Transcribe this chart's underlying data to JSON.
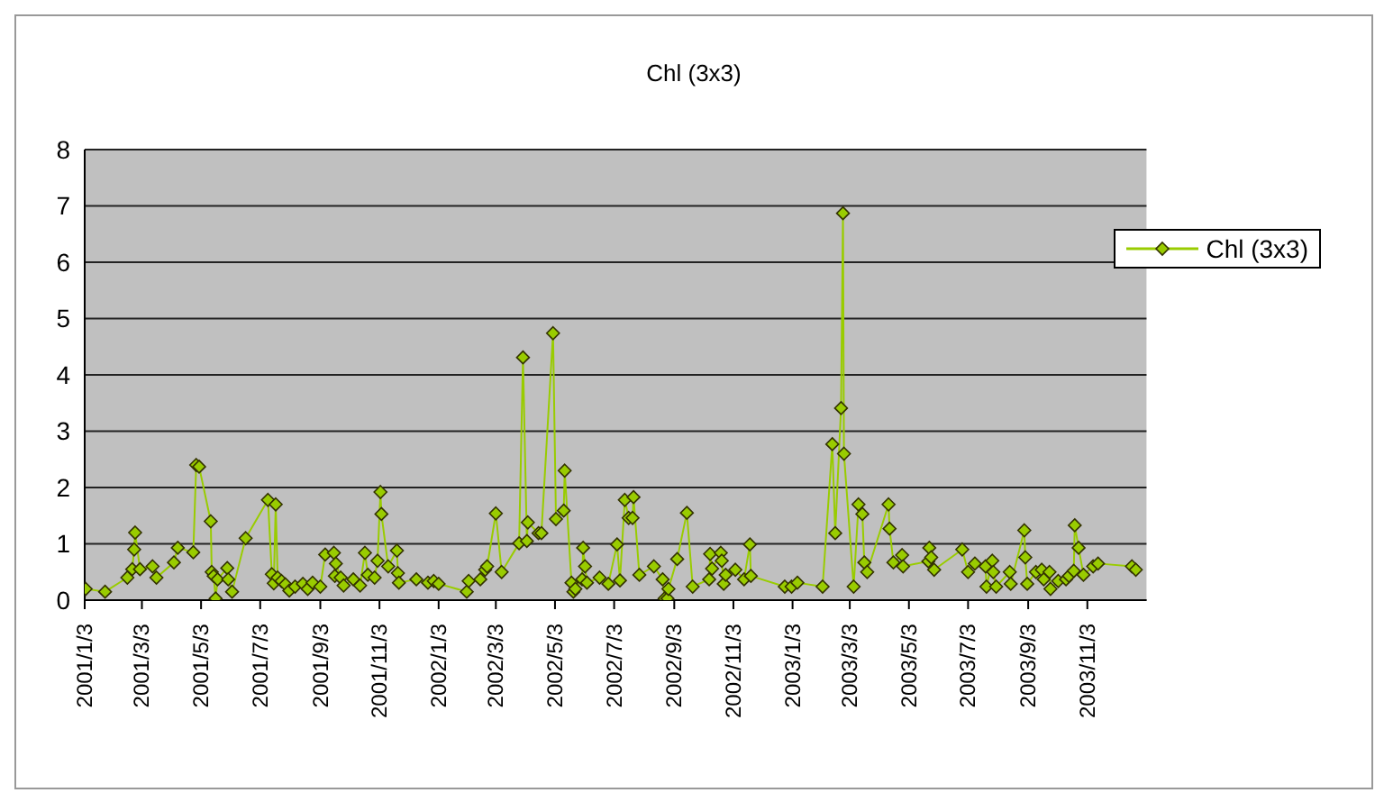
{
  "chart_data": {
    "type": "line",
    "title": "Chl (3x3)",
    "x": [
      "2001-01-04",
      "2001-01-24",
      "2001-02-16",
      "2001-02-21",
      "2001-02-23",
      "2001-02-24",
      "2001-03-01",
      "2001-03-14",
      "2001-03-18",
      "2001-04-05",
      "2001-04-09",
      "2001-04-25",
      "2001-04-28",
      "2001-05-01",
      "2001-05-13",
      "2001-05-14",
      "2001-05-16",
      "2001-05-18",
      "2001-05-20",
      "2001-05-30",
      "2001-05-31",
      "2001-06-04",
      "2001-06-18",
      "2001-07-11",
      "2001-07-15",
      "2001-07-17",
      "2001-07-19",
      "2001-07-21",
      "2001-07-25",
      "2001-07-29",
      "2001-08-02",
      "2001-08-08",
      "2001-08-16",
      "2001-08-21",
      "2001-08-26",
      "2001-09-03",
      "2001-09-08",
      "2001-09-17",
      "2001-09-18",
      "2001-09-19",
      "2001-09-24",
      "2001-09-27",
      "2001-10-07",
      "2001-10-14",
      "2001-10-19",
      "2001-10-22",
      "2001-10-29",
      "2001-11-01",
      "2001-11-04",
      "2001-11-05",
      "2001-11-12",
      "2001-11-21",
      "2001-11-22",
      "2001-11-23",
      "2001-12-11",
      "2001-12-23",
      "2001-12-29",
      "2002-01-03",
      "2002-02-01",
      "2002-02-03",
      "2002-02-15",
      "2002-02-20",
      "2002-02-22",
      "2002-03-03",
      "2002-03-09",
      "2002-03-27",
      "2002-03-31",
      "2002-04-04",
      "2002-04-05",
      "2002-04-16",
      "2002-04-19",
      "2002-05-01",
      "2002-05-04",
      "2002-05-12",
      "2002-05-13",
      "2002-05-20",
      "2002-05-22",
      "2002-05-24",
      "2002-05-31",
      "2002-06-01",
      "2002-06-03",
      "2002-06-05",
      "2002-06-18",
      "2002-06-27",
      "2002-07-06",
      "2002-07-09",
      "2002-07-14",
      "2002-07-18",
      "2002-07-22",
      "2002-07-23",
      "2002-07-29",
      "2002-08-13",
      "2002-08-22",
      "2002-08-24",
      "2002-08-27",
      "2002-08-28",
      "2002-09-06",
      "2002-09-16",
      "2002-09-22",
      "2002-10-09",
      "2002-10-10",
      "2002-10-12",
      "2002-10-21",
      "2002-10-22",
      "2002-10-24",
      "2002-10-26",
      "2002-11-05",
      "2002-11-14",
      "2002-11-20",
      "2002-11-21",
      "2002-12-26",
      "2003-01-02",
      "2003-01-08",
      "2003-02-03",
      "2003-02-13",
      "2003-02-16",
      "2003-02-22",
      "2003-02-24",
      "2003-02-25",
      "2003-03-07",
      "2003-03-12",
      "2003-03-16",
      "2003-03-18",
      "2003-03-21",
      "2003-04-12",
      "2003-04-13",
      "2003-04-17",
      "2003-04-26",
      "2003-04-27",
      "2003-05-23",
      "2003-05-24",
      "2003-05-26",
      "2003-05-29",
      "2003-06-27",
      "2003-07-03",
      "2003-07-10",
      "2003-07-21",
      "2003-07-22",
      "2003-07-28",
      "2003-07-29",
      "2003-08-01",
      "2003-08-15",
      "2003-08-16",
      "2003-08-30",
      "2003-08-31",
      "2003-09-02",
      "2003-09-11",
      "2003-09-17",
      "2003-09-19",
      "2003-09-25",
      "2003-09-26",
      "2003-10-04",
      "2003-10-12",
      "2003-10-15",
      "2003-10-20",
      "2003-10-21",
      "2003-10-25",
      "2003-10-30",
      "2003-11-09",
      "2003-11-14",
      "2003-12-19",
      "2003-12-23"
    ],
    "series": [
      {
        "name": "Chl (3x3)",
        "color": "#99cc00",
        "values": [
          0.2,
          0.15,
          0.4,
          0.55,
          0.9,
          1.2,
          0.55,
          0.6,
          0.4,
          0.67,
          0.93,
          0.85,
          2.4,
          2.37,
          1.4,
          0.5,
          0.43,
          0.03,
          0.37,
          0.57,
          0.37,
          0.15,
          1.1,
          1.78,
          0.46,
          0.3,
          1.7,
          0.4,
          0.34,
          0.28,
          0.17,
          0.24,
          0.29,
          0.2,
          0.31,
          0.24,
          0.81,
          0.84,
          0.43,
          0.65,
          0.4,
          0.26,
          0.37,
          0.26,
          0.84,
          0.45,
          0.4,
          0.7,
          1.92,
          1.53,
          0.6,
          0.88,
          0.48,
          0.31,
          0.37,
          0.31,
          0.34,
          0.29,
          0.15,
          0.34,
          0.37,
          0.54,
          0.6,
          1.54,
          0.5,
          1.01,
          4.31,
          1.05,
          1.38,
          1.19,
          1.19,
          4.74,
          1.44,
          1.59,
          2.3,
          0.31,
          0.15,
          0.2,
          0.37,
          0.93,
          0.6,
          0.31,
          0.4,
          0.29,
          0.99,
          0.35,
          1.78,
          1.46,
          1.46,
          1.83,
          0.45,
          0.6,
          0.37,
          0.03,
          0.03,
          0.2,
          0.73,
          1.55,
          0.24,
          0.37,
          0.82,
          0.56,
          0.84,
          0.7,
          0.29,
          0.45,
          0.54,
          0.37,
          0.99,
          0.43,
          0.24,
          0.24,
          0.31,
          0.24,
          2.77,
          1.19,
          3.41,
          6.87,
          2.6,
          0.24,
          1.7,
          1.53,
          0.67,
          0.5,
          1.7,
          1.27,
          0.67,
          0.8,
          0.6,
          0.69,
          0.93,
          0.76,
          0.54,
          0.9,
          0.5,
          0.65,
          0.6,
          0.24,
          0.7,
          0.5,
          0.24,
          0.5,
          0.29,
          1.24,
          0.76,
          0.29,
          0.5,
          0.54,
          0.37,
          0.5,
          0.2,
          0.34,
          0.37,
          0.43,
          0.52,
          1.33,
          0.93,
          0.45,
          0.6,
          0.65,
          0.6,
          0.54
        ]
      }
    ],
    "xlim": [
      "2001-01-03",
      "2004-01-03"
    ],
    "xticks": [
      {
        "value": "2001-01-03",
        "label": "2001/1/3"
      },
      {
        "value": "2001-03-03",
        "label": "2001/3/3"
      },
      {
        "value": "2001-05-03",
        "label": "2001/5/3"
      },
      {
        "value": "2001-07-03",
        "label": "2001/7/3"
      },
      {
        "value": "2001-09-03",
        "label": "2001/9/3"
      },
      {
        "value": "2001-11-03",
        "label": "2001/11/3"
      },
      {
        "value": "2002-01-03",
        "label": "2002/1/3"
      },
      {
        "value": "2002-03-03",
        "label": "2002/3/3"
      },
      {
        "value": "2002-05-03",
        "label": "2002/5/3"
      },
      {
        "value": "2002-07-03",
        "label": "2002/7/3"
      },
      {
        "value": "2002-09-03",
        "label": "2002/9/3"
      },
      {
        "value": "2002-11-03",
        "label": "2002/11/3"
      },
      {
        "value": "2003-01-03",
        "label": "2003/1/3"
      },
      {
        "value": "2003-03-03",
        "label": "2003/3/3"
      },
      {
        "value": "2003-05-03",
        "label": "2003/5/3"
      },
      {
        "value": "2003-07-03",
        "label": "2003/7/3"
      },
      {
        "value": "2003-09-03",
        "label": "2003/9/3"
      },
      {
        "value": "2003-11-03",
        "label": "2003/11/3"
      }
    ],
    "ylim": [
      0,
      8
    ],
    "yticks": [
      0,
      1,
      2,
      3,
      4,
      5,
      6,
      7,
      8
    ],
    "grid": "y",
    "legend": "top right",
    "marker": "diamond",
    "line_style": "solid"
  }
}
